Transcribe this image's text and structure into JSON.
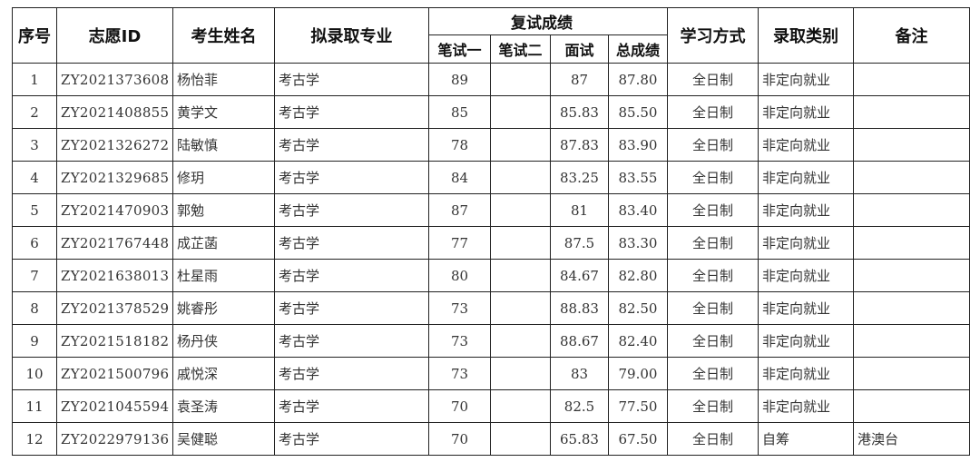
{
  "headers": {
    "seq": "序号",
    "id": "志愿ID",
    "name": "考生姓名",
    "major": "拟录取专业",
    "retest_group": "复试成绩",
    "written1": "笔试一",
    "written2": "笔试二",
    "interview": "面试",
    "total": "总成绩",
    "study_mode": "学习方式",
    "admission_type": "录取类别",
    "remarks": "备注"
  },
  "rows": [
    {
      "seq": "1",
      "id": "ZY2021373608",
      "name": "杨怡菲",
      "major": "考古学",
      "written1": "89",
      "written2": "",
      "interview": "87",
      "total": "87.80",
      "study_mode": "全日制",
      "admission_type": "非定向就业",
      "remarks": ""
    },
    {
      "seq": "2",
      "id": "ZY2021408855",
      "name": "黄学文",
      "major": "考古学",
      "written1": "85",
      "written2": "",
      "interview": "85.83",
      "total": "85.50",
      "study_mode": "全日制",
      "admission_type": "非定向就业",
      "remarks": ""
    },
    {
      "seq": "3",
      "id": "ZY2021326272",
      "name": "陆敏慎",
      "major": "考古学",
      "written1": "78",
      "written2": "",
      "interview": "87.83",
      "total": "83.90",
      "study_mode": "全日制",
      "admission_type": "非定向就业",
      "remarks": ""
    },
    {
      "seq": "4",
      "id": "ZY2021329685",
      "name": "修玥",
      "major": "考古学",
      "written1": "84",
      "written2": "",
      "interview": "83.25",
      "total": "83.55",
      "study_mode": "全日制",
      "admission_type": "非定向就业",
      "remarks": ""
    },
    {
      "seq": "5",
      "id": "ZY2021470903",
      "name": "郭勉",
      "major": "考古学",
      "written1": "87",
      "written2": "",
      "interview": "81",
      "total": "83.40",
      "study_mode": "全日制",
      "admission_type": "非定向就业",
      "remarks": ""
    },
    {
      "seq": "6",
      "id": "ZY2021767448",
      "name": "成芷菡",
      "major": "考古学",
      "written1": "77",
      "written2": "",
      "interview": "87.5",
      "total": "83.30",
      "study_mode": "全日制",
      "admission_type": "非定向就业",
      "remarks": ""
    },
    {
      "seq": "7",
      "id": "ZY2021638013",
      "name": "杜星雨",
      "major": "考古学",
      "written1": "80",
      "written2": "",
      "interview": "84.67",
      "total": "82.80",
      "study_mode": "全日制",
      "admission_type": "非定向就业",
      "remarks": ""
    },
    {
      "seq": "8",
      "id": "ZY2021378529",
      "name": "姚睿彤",
      "major": "考古学",
      "written1": "73",
      "written2": "",
      "interview": "88.83",
      "total": "82.50",
      "study_mode": "全日制",
      "admission_type": "非定向就业",
      "remarks": ""
    },
    {
      "seq": "9",
      "id": "ZY2021518182",
      "name": "杨丹侠",
      "major": "考古学",
      "written1": "73",
      "written2": "",
      "interview": "88.67",
      "total": "82.40",
      "study_mode": "全日制",
      "admission_type": "非定向就业",
      "remarks": ""
    },
    {
      "seq": "10",
      "id": "ZY2021500796",
      "name": "戚悦深",
      "major": "考古学",
      "written1": "73",
      "written2": "",
      "interview": "83",
      "total": "79.00",
      "study_mode": "全日制",
      "admission_type": "非定向就业",
      "remarks": ""
    },
    {
      "seq": "11",
      "id": "ZY2021045594",
      "name": "袁圣涛",
      "major": "考古学",
      "written1": "70",
      "written2": "",
      "interview": "82.5",
      "total": "77.50",
      "study_mode": "全日制",
      "admission_type": "非定向就业",
      "remarks": ""
    },
    {
      "seq": "12",
      "id": "ZY2022979136",
      "name": "吴健聪",
      "major": "考古学",
      "written1": "70",
      "written2": "",
      "interview": "65.83",
      "total": "67.50",
      "study_mode": "全日制",
      "admission_type": "自筹",
      "remarks": "港澳台"
    }
  ]
}
